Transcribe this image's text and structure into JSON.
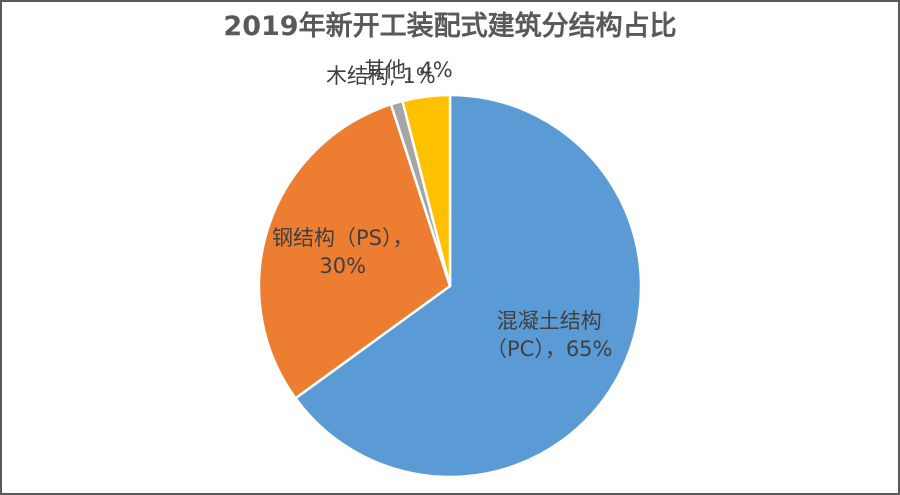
{
  "chart_data": {
    "type": "pie",
    "title": "2019年新开工装配式建筑分结构占比",
    "categories": [
      "混凝土结构（PC）",
      "钢结构（PS）",
      "木结构",
      "其他"
    ],
    "values": [
      65,
      30,
      1,
      4
    ],
    "unit": "%",
    "colors": [
      "#5b9bd5",
      "#ed7d31",
      "#a5a5a5",
      "#ffc000"
    ],
    "start_angle_deg": 0,
    "direction": "clockwise",
    "legend": "none",
    "data_labels": [
      {
        "line1": "混凝土结构",
        "line2": "（PC），65%"
      },
      {
        "line1": "钢结构（PS），",
        "line2": "30%"
      },
      {
        "line1": "木结构, 1%"
      },
      {
        "line1": "其他, 4%"
      }
    ]
  }
}
